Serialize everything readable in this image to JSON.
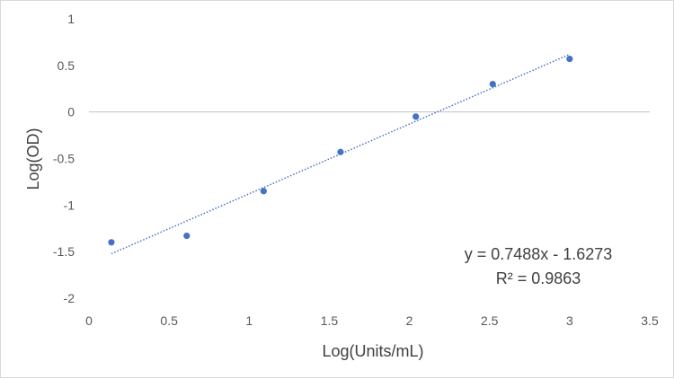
{
  "chart_data": {
    "type": "scatter",
    "xlabel": "Log(Units/mL)",
    "ylabel": "Log(OD)",
    "xlim": [
      0,
      3.5
    ],
    "ylim": [
      -2,
      1
    ],
    "x_ticks": [
      "0",
      "0.5",
      "1",
      "1.5",
      "2",
      "2.5",
      "3",
      "3.5"
    ],
    "y_ticks": [
      "1",
      "0.5",
      "0",
      "-0.5",
      "-1",
      "-1.5",
      "-2"
    ],
    "grid": "horizontal zero line only",
    "points": [
      {
        "x": 0.14,
        "y": -1.4
      },
      {
        "x": 0.61,
        "y": -1.33
      },
      {
        "x": 1.09,
        "y": -0.85
      },
      {
        "x": 1.57,
        "y": -0.43
      },
      {
        "x": 2.04,
        "y": -0.05
      },
      {
        "x": 2.52,
        "y": 0.3
      },
      {
        "x": 3.0,
        "y": 0.57
      }
    ],
    "trendline": {
      "type": "linear",
      "slope": 0.7488,
      "intercept": -1.6273,
      "x_range": [
        0.14,
        3.0
      ],
      "equation": "y = 0.7488x - 1.6273",
      "r_squared": "R² = 0.9863"
    },
    "colors": {
      "marker": "#4472c4",
      "trendline": "#4472c4",
      "axis": "#bfbfbf"
    }
  }
}
